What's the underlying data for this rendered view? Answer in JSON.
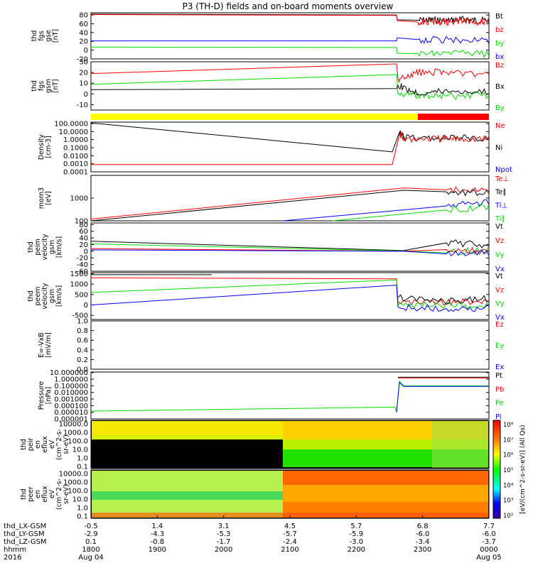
{
  "title": "P3 (TH-D) fields and on-board moments overview",
  "colors": {
    "black": "#000000",
    "red": "#ff0000",
    "green": "#00dd00",
    "blue": "#0000ff",
    "yellow": "#ffff00"
  },
  "chart_data": [
    {
      "type": "line",
      "ylabel": [
        "thd",
        "fgs",
        "gse",
        "[nT]"
      ],
      "yticks": [
        -20,
        0,
        20,
        40,
        60,
        80
      ],
      "ylim": [
        -20,
        85
      ],
      "legend": [
        {
          "name": "Bt",
          "color": "black"
        },
        {
          "name": "bz",
          "color": "red"
        },
        {
          "name": "by",
          "color": "green"
        },
        {
          "name": "bx",
          "color": "blue"
        }
      ],
      "series": [
        {
          "color": "black",
          "x": [
            0,
            2.15,
            2.155,
            2.3,
            2.4,
            2.5,
            2.6,
            2.7,
            2.8
          ],
          "y": [
            82,
            80,
            69,
            68,
            69,
            67,
            70,
            68,
            67
          ],
          "noisy_after": 2.16
        },
        {
          "color": "red",
          "x": [
            0,
            2.15,
            2.155,
            2.3,
            2.4,
            2.5,
            2.6,
            2.7,
            2.8
          ],
          "y": [
            81,
            79,
            67,
            64,
            66,
            63,
            68,
            65,
            63
          ],
          "noisy_after": 2.16
        },
        {
          "color": "blue",
          "x": [
            0,
            2.15,
            2.155,
            2.3,
            2.5,
            2.8
          ],
          "y": [
            21,
            21,
            28,
            24,
            23,
            21
          ],
          "noisy_after": 2.16
        },
        {
          "color": "green",
          "x": [
            0,
            2.15,
            2.155,
            2.3,
            2.5,
            2.8
          ],
          "y": [
            7,
            6,
            -7,
            -8,
            -7,
            -9
          ],
          "noisy_after": 2.16
        }
      ]
    },
    {
      "type": "line",
      "ylabel": [
        "thd",
        "fgs",
        "gsm",
        "[nT]"
      ],
      "yticks": [
        -10,
        0,
        10,
        20,
        30
      ],
      "ylim": [
        -15,
        30
      ],
      "legend": [
        {
          "name": "Bz",
          "color": "red"
        },
        {
          "name": "Bx",
          "color": "black"
        },
        {
          "name": "By",
          "color": "green"
        }
      ],
      "series": [
        {
          "color": "red",
          "x": [
            0,
            2.15,
            2.16,
            2.3,
            2.5,
            2.8
          ],
          "y": [
            19,
            28,
            14,
            20,
            21,
            17
          ],
          "noisy_after": 2.16
        },
        {
          "color": "green",
          "x": [
            0,
            2.15,
            2.16,
            2.3,
            2.5,
            2.8
          ],
          "y": [
            9,
            18,
            0,
            -1,
            -2,
            -1
          ],
          "noisy_after": 2.16
        },
        {
          "color": "black",
          "x": [
            0,
            2.15,
            2.16,
            2.3,
            2.5,
            2.8
          ],
          "y": [
            4,
            5,
            8,
            1,
            3,
            2
          ],
          "noisy_after": 2.16
        }
      ]
    },
    {
      "type": "bar",
      "segments": [
        {
          "from": 0,
          "to": 2.3,
          "color": "yellow"
        },
        {
          "from": 2.3,
          "to": 2.8,
          "color": "red"
        }
      ]
    },
    {
      "type": "line",
      "scale": "log",
      "ylabel": [
        "Density",
        "[cm-3]"
      ],
      "yticks": [
        "100.0000",
        "10.0000",
        "1.0000",
        "0.1000",
        "0.0100",
        "0.0010",
        "0.0001"
      ],
      "ylim": [
        0.0001,
        150
      ],
      "legend": [
        {
          "name": "Ne",
          "color": "red"
        },
        {
          "name": "Ni",
          "color": "black"
        },
        {
          "name": "Npot",
          "color": "blue"
        }
      ],
      "series": [
        {
          "color": "black",
          "x": [
            0,
            2.12,
            2.17,
            2.2,
            2.4,
            2.6,
            2.8
          ],
          "y": [
            120,
            0.03,
            8,
            1.5,
            1.5,
            1.6,
            1.5
          ],
          "noisy_after": 2.16
        },
        {
          "color": "red",
          "x": [
            0,
            2.12,
            2.17,
            2.2,
            2.4,
            2.6,
            2.8
          ],
          "y": [
            0.0008,
            0.0008,
            4,
            1.3,
            1.4,
            1.3,
            1.3
          ],
          "noisy_after": 2.16
        }
      ]
    },
    {
      "type": "line",
      "scale": "log",
      "ylabel": [
        "mom3",
        "[eV]"
      ],
      "yticks": [
        "1000",
        "100"
      ],
      "ylim": [
        100,
        10000
      ],
      "legend": [
        {
          "name": "Te⊥",
          "color": "red"
        },
        {
          "name": "Te∥",
          "color": "black"
        },
        {
          "name": "Ti⊥",
          "color": "blue"
        },
        {
          "name": "Ti∥",
          "color": "green"
        }
      ],
      "series": [
        {
          "color": "red",
          "x": [
            0,
            2.2,
            2.5,
            2.8
          ],
          "y": [
            120,
            2800,
            2300,
            2000
          ],
          "noisy_after": 2.4
        },
        {
          "color": "black",
          "x": [
            0,
            2.2,
            2.5,
            2.8
          ],
          "y": [
            100,
            2200,
            1900,
            1700
          ],
          "noisy_after": 2.4
        },
        {
          "color": "blue",
          "x": [
            1.35,
            2.5,
            2.8
          ],
          "y": [
            100,
            450,
            600
          ],
          "noisy_after": 2.5
        },
        {
          "color": "green",
          "x": [
            1.7,
            2.5,
            2.8
          ],
          "y": [
            100,
            300,
            420
          ],
          "noisy_after": 2.5
        }
      ]
    },
    {
      "type": "line",
      "ylabel": [
        "thd",
        "peim",
        "velocity",
        "gsm",
        "[km/s]"
      ],
      "yticks": [
        -60,
        -40,
        -20,
        0,
        20,
        40,
        60,
        80
      ],
      "ylim": [
        -60,
        85
      ],
      "legend": [
        {
          "name": "Vt",
          "color": "black"
        },
        {
          "name": "Vz",
          "color": "red"
        },
        {
          "name": "Vy",
          "color": "green"
        },
        {
          "name": "Vx",
          "color": "blue"
        }
      ],
      "series": [
        {
          "color": "black",
          "x": [
            0,
            2.2,
            2.5,
            2.8
          ],
          "y": [
            30,
            2,
            25,
            20
          ],
          "noisy_after": 2.25
        },
        {
          "color": "green",
          "x": [
            0,
            2.2,
            2.5,
            2.8
          ],
          "y": [
            22,
            1,
            -5,
            5
          ],
          "noisy_after": 2.25
        },
        {
          "color": "red",
          "x": [
            0,
            2.2,
            2.5,
            2.8
          ],
          "y": [
            8,
            0,
            5,
            0
          ],
          "noisy_after": 2.25
        },
        {
          "color": "blue",
          "x": [
            0,
            2.2,
            2.5,
            2.8
          ],
          "y": [
            4,
            0,
            -8,
            -5
          ],
          "noisy_after": 2.25
        }
      ]
    },
    {
      "type": "line",
      "ylabel": [
        "thd",
        "peem",
        "velocity",
        "gsm",
        "[km/s]"
      ],
      "yticks": [
        -500,
        0,
        500,
        1000,
        1500
      ],
      "ylim": [
        -700,
        1550
      ],
      "legend": [
        {
          "name": "Vt",
          "color": "black"
        },
        {
          "name": "Vz",
          "color": "red"
        },
        {
          "name": "Vy",
          "color": "green"
        },
        {
          "name": "Vx",
          "color": "blue"
        }
      ],
      "series": [
        {
          "color": "black",
          "x": [
            0,
            0.85
          ],
          "y": [
            1450,
            1450
          ]
        },
        {
          "color": "red",
          "x": [
            0,
            2.15,
            2.16,
            2.5,
            2.8
          ],
          "y": [
            1300,
            1250,
            150,
            150,
            100
          ],
          "noisy_after": 2.16
        },
        {
          "color": "green",
          "x": [
            0,
            2.15,
            2.16,
            2.5,
            2.8
          ],
          "y": [
            600,
            1200,
            0,
            -50,
            -50
          ],
          "noisy_after": 2.16
        },
        {
          "color": "blue",
          "x": [
            0,
            2.15,
            2.16,
            2.5,
            2.8
          ],
          "y": [
            0,
            950,
            -100,
            -150,
            -200
          ],
          "noisy_after": 2.16
        },
        {
          "color": "black",
          "x": [
            2.16,
            2.5,
            2.8
          ],
          "y": [
            350,
            200,
            300
          ],
          "noisy_after": 2.16
        }
      ]
    },
    {
      "type": "line",
      "ylabel": [
        "E=-VxB",
        "[mV/m]"
      ],
      "yticks": [
        "0.0",
        "0.2",
        "0.4",
        "0.6",
        "0.8",
        "1.0"
      ],
      "ylim": [
        0,
        1
      ],
      "legend": [
        {
          "name": "Ez",
          "color": "red"
        },
        {
          "name": "Ey",
          "color": "green"
        },
        {
          "name": "Ex",
          "color": "blue"
        }
      ],
      "series": []
    },
    {
      "type": "line",
      "scale": "log",
      "ylabel": [
        "Pressure",
        "[nPa]"
      ],
      "yticks": [
        "10.000000",
        "1.000000",
        "0.100000",
        "0.010000",
        "0.001000",
        "0.000100",
        "0.000010",
        "0.000001"
      ],
      "ylim": [
        1e-06,
        12
      ],
      "legend": [
        {
          "name": "Pt",
          "color": "black"
        },
        {
          "name": "Pb",
          "color": "red"
        },
        {
          "name": "Pe",
          "color": "green"
        },
        {
          "name": "Pi",
          "color": "blue"
        }
      ],
      "series": [
        {
          "color": "black",
          "x": [
            2.16,
            2.8
          ],
          "y": [
            2.0,
            2.0
          ]
        },
        {
          "color": "red",
          "x": [
            2.16,
            2.8
          ],
          "y": [
            1.5,
            1.5
          ]
        },
        {
          "color": "green",
          "x": [
            0,
            2.14,
            2.15,
            2.17,
            2.2,
            2.8
          ],
          "y": [
            1.5e-05,
            6e-05,
            1e-05,
            0.5,
            0.1,
            0.1
          ]
        },
        {
          "color": "blue",
          "x": [
            2.15,
            2.17,
            2.2,
            2.8
          ],
          "y": [
            1e-05,
            0.3,
            0.08,
            0.08
          ]
        }
      ]
    },
    {
      "type": "heatmap",
      "ylabel": [
        "thd",
        "peir",
        "en",
        "eflux",
        "eV",
        "(cm^2-s-",
        "sr-eV)"
      ],
      "yticks": [
        "10000.0",
        "1000.0",
        "100.0",
        "10.0",
        "1.0",
        "0.1"
      ]
    },
    {
      "type": "heatmap",
      "ylabel": [
        "thd",
        "peer",
        "en",
        "eflux",
        "eV",
        "(cm^2-s-",
        "sr-eV)"
      ],
      "yticks": [
        "10000.0",
        "1000.0",
        "100.0",
        "10.0",
        "1.0",
        "0.1"
      ]
    }
  ],
  "colorbar": {
    "label": "[eV/(cm^2-s-sr-eV)] (All Qs)",
    "ticks": [
      "10⁸",
      "10⁷",
      "10⁶",
      "10⁵",
      "10⁴",
      "10³",
      "10²"
    ]
  },
  "xaxis": {
    "rows": [
      {
        "label": "thd_LX-GSM",
        "values": [
          "-0.5",
          "1.4",
          "3.1",
          "4.5",
          "5.7",
          "6.8",
          "7.7"
        ]
      },
      {
        "label": "thd_LY-GSM",
        "values": [
          "-2.9",
          "-4.3",
          "-5.3",
          "-5.7",
          "-5.9",
          "-6.0",
          "-6.0"
        ]
      },
      {
        "label": "thd_LZ-GSM",
        "values": [
          "0.1",
          "-0.8",
          "-1.7",
          "-2.4",
          "-3.0",
          "-3.4",
          "-3.7"
        ]
      },
      {
        "label": "hhmm",
        "values": [
          "1800",
          "1900",
          "2000",
          "2100",
          "2200",
          "2300",
          "0000"
        ]
      }
    ],
    "year": "2016",
    "start_date": "Aug 04",
    "end_date": "Aug 05"
  }
}
